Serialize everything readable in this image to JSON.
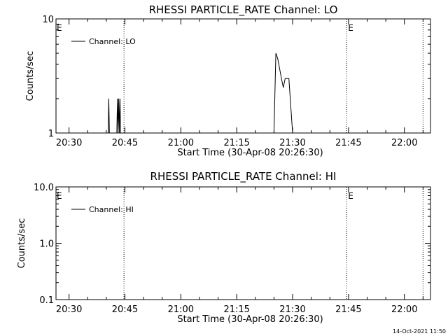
{
  "chart_data": [
    {
      "type": "line",
      "title": "RHESSI PARTICLE_RATE Channel: LO",
      "xlabel": "Start Time (30-Apr-08 20:26:30)",
      "ylabel": "Counts/sec",
      "y_scale": "log",
      "xlim": [
        "20:26:30",
        "22:07:00"
      ],
      "ylim": [
        1,
        10
      ],
      "x_tick_labels": [
        "20:30",
        "20:45",
        "21:00",
        "21:15",
        "21:30",
        "21:45",
        "22:00"
      ],
      "y_tick_labels": [
        "1",
        "10"
      ],
      "eclipse_marker_label": "E",
      "legend": {
        "position": "top-left",
        "entries": [
          "Channel: LO"
        ]
      },
      "grid": false,
      "series": [
        {
          "name": "Channel: LO",
          "points": [
            {
              "x": "20:40:30",
              "y": 1.0
            },
            {
              "x": "20:40:40",
              "y": 2.0
            },
            {
              "x": "20:40:50",
              "y": 1.0
            },
            {
              "x": "20:42:50",
              "y": 1.0
            },
            {
              "x": "20:43:00",
              "y": 2.0
            },
            {
              "x": "20:43:10",
              "y": 1.0
            },
            {
              "x": "20:43:20",
              "y": 2.0
            },
            {
              "x": "20:43:30",
              "y": 1.0
            },
            {
              "x": "20:43:40",
              "y": 2.0
            },
            {
              "x": "20:43:50",
              "y": 1.0
            },
            {
              "x": "21:25:00",
              "y": 1.0
            },
            {
              "x": "21:25:30",
              "y": 5.0
            },
            {
              "x": "21:26:00",
              "y": 4.5
            },
            {
              "x": "21:27:00",
              "y": 3.0
            },
            {
              "x": "21:27:30",
              "y": 2.5
            },
            {
              "x": "21:28:00",
              "y": 3.0
            },
            {
              "x": "21:29:00",
              "y": 3.0
            },
            {
              "x": "21:30:00",
              "y": 1.0
            }
          ]
        }
      ],
      "vertical_markers": [
        "20:44:45",
        "21:44:30",
        "22:05:00"
      ]
    },
    {
      "type": "line",
      "title": "RHESSI PARTICLE_RATE Channel: HI",
      "xlabel": "Start Time (30-Apr-08 20:26:30)",
      "ylabel": "Counts/sec",
      "y_scale": "log",
      "xlim": [
        "20:26:30",
        "22:07:00"
      ],
      "ylim": [
        0.1,
        10
      ],
      "x_tick_labels": [
        "20:30",
        "20:45",
        "21:00",
        "21:15",
        "21:30",
        "21:45",
        "22:00"
      ],
      "y_tick_labels": [
        "0.1",
        "1.0",
        "10.0"
      ],
      "eclipse_marker_label": "E",
      "legend": {
        "position": "top-left",
        "entries": [
          "Channel: HI"
        ]
      },
      "grid": false,
      "series": [
        {
          "name": "Channel: HI",
          "points": []
        }
      ],
      "vertical_markers": [
        "20:44:45",
        "21:44:30",
        "22:05:00"
      ]
    }
  ],
  "footer": {
    "timestamp": "14-Oct-2021 11:50"
  }
}
